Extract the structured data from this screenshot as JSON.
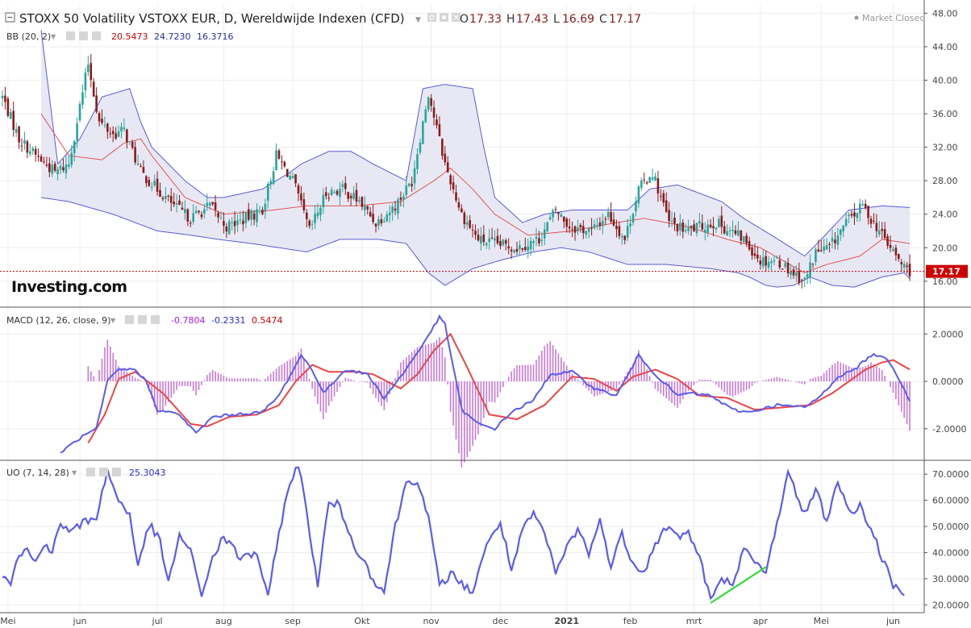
{
  "header": {
    "title": "STOXX 50 Volatility VSTOXX EUR, D, Wereldwijde Indexen (CFD)",
    "ohlc": [
      {
        "label": "O",
        "value": "17.33"
      },
      {
        "label": "H",
        "value": "17.43"
      },
      {
        "label": "L",
        "value": "16.69"
      },
      {
        "label": "C",
        "value": "17.17"
      }
    ],
    "market_status": "Market Closed",
    "logo": "Investing.com"
  },
  "colors": {
    "up": "#26a69a",
    "down": "#8b1a1a",
    "bb_band": "#5b5bd6",
    "bb_fill": "#e8e8f4",
    "bb_mid": "#e05555",
    "macd_line": "#5b5bf0",
    "signal_line": "#ee4444",
    "hist": "#c879d8",
    "uo_line": "#5b5bf0",
    "trendline": "#33dd33",
    "price_line": "#cc0000"
  },
  "chart_data": [
    {
      "type": "candlestick",
      "indicator": "BB (20, 2)",
      "indicator_values": [
        "20.5473",
        "24.7230",
        "16.3716"
      ],
      "ylim": [
        13,
        49
      ],
      "yticks": [
        16,
        20,
        24,
        28,
        32,
        36,
        40,
        44,
        48
      ],
      "ytick_labels": [
        "16.00",
        "20.00",
        "24.00",
        "28.00",
        "32.00",
        "36.00",
        "40.00",
        "44.00",
        "48.00"
      ],
      "last_price": "17.17",
      "close_anchors": [
        [
          0,
          38.0
        ],
        [
          6,
          33.0
        ],
        [
          12,
          31.0
        ],
        [
          19,
          29.0
        ],
        [
          24,
          30.0
        ],
        [
          31,
          42.0
        ],
        [
          35,
          35.0
        ],
        [
          40,
          33.5
        ],
        [
          44,
          34.0
        ],
        [
          50,
          29.0
        ],
        [
          56,
          27.0
        ],
        [
          62,
          25.0
        ],
        [
          68,
          23.5
        ],
        [
          75,
          25.0
        ],
        [
          81,
          22.5
        ],
        [
          88,
          23.5
        ],
        [
          94,
          24.5
        ],
        [
          99,
          31.0
        ],
        [
          105,
          28.0
        ],
        [
          111,
          22.0
        ],
        [
          117,
          26.5
        ],
        [
          123,
          27.0
        ],
        [
          129,
          25.5
        ],
        [
          135,
          23.0
        ],
        [
          142,
          25.0
        ],
        [
          148,
          28.0
        ],
        [
          154,
          38.5
        ],
        [
          160,
          30.0
        ],
        [
          166,
          24.0
        ],
        [
          172,
          21.0
        ],
        [
          178,
          20.5
        ],
        [
          186,
          20.0
        ],
        [
          194,
          21.0
        ],
        [
          200,
          24.5
        ],
        [
          205,
          22.5
        ],
        [
          213,
          22.0
        ],
        [
          219,
          24.0
        ],
        [
          225,
          21.0
        ],
        [
          230,
          27.0
        ],
        [
          235,
          29.0
        ],
        [
          241,
          23.0
        ],
        [
          247,
          22.0
        ],
        [
          252,
          22.5
        ],
        [
          258,
          23.0
        ],
        [
          263,
          22.0
        ],
        [
          268,
          21.0
        ],
        [
          274,
          18.5
        ],
        [
          280,
          18.5
        ],
        [
          286,
          17.0
        ],
        [
          290,
          16.0
        ],
        [
          294,
          19.5
        ],
        [
          299,
          20.0
        ],
        [
          305,
          23.0
        ],
        [
          311,
          25.0
        ],
        [
          315,
          23.0
        ],
        [
          320,
          20.5
        ],
        [
          325,
          18.0
        ],
        [
          328,
          17.2
        ]
      ],
      "bb_upper_anchors": [
        [
          14,
          46.0
        ],
        [
          20,
          30.0
        ],
        [
          28,
          33.0
        ],
        [
          36,
          38.0
        ],
        [
          46,
          39.0
        ],
        [
          50,
          35.0
        ],
        [
          54,
          32.0
        ],
        [
          66,
          28.0
        ],
        [
          74,
          26.0
        ],
        [
          80,
          26.0
        ],
        [
          94,
          27.0
        ],
        [
          104,
          29.0
        ],
        [
          108,
          30.0
        ],
        [
          118,
          31.5
        ],
        [
          126,
          31.5
        ],
        [
          134,
          30.0
        ],
        [
          146,
          28.0
        ],
        [
          152,
          39.0
        ],
        [
          160,
          39.5
        ],
        [
          170,
          39.0
        ],
        [
          174,
          32.0
        ],
        [
          178,
          26.0
        ],
        [
          188,
          23.0
        ],
        [
          196,
          24.0
        ],
        [
          206,
          24.5
        ],
        [
          218,
          24.5
        ],
        [
          226,
          24.5
        ],
        [
          234,
          27.0
        ],
        [
          244,
          27.5
        ],
        [
          252,
          26.5
        ],
        [
          260,
          25.5
        ],
        [
          268,
          23.5
        ],
        [
          278,
          21.5
        ],
        [
          290,
          19.0
        ],
        [
          296,
          21.0
        ],
        [
          306,
          24.5
        ],
        [
          318,
          25.0
        ],
        [
          328,
          24.8
        ]
      ],
      "bb_lower_anchors": [
        [
          14,
          26.0
        ],
        [
          24,
          25.5
        ],
        [
          40,
          24.0
        ],
        [
          56,
          22.0
        ],
        [
          68,
          21.5
        ],
        [
          78,
          21.0
        ],
        [
          90,
          20.5
        ],
        [
          100,
          20.0
        ],
        [
          110,
          19.5
        ],
        [
          122,
          21.0
        ],
        [
          136,
          21.0
        ],
        [
          146,
          20.5
        ],
        [
          154,
          17.0
        ],
        [
          160,
          15.5
        ],
        [
          170,
          17.5
        ],
        [
          180,
          18.5
        ],
        [
          192,
          19.5
        ],
        [
          202,
          20.0
        ],
        [
          212,
          19.5
        ],
        [
          226,
          18.0
        ],
        [
          240,
          18.0
        ],
        [
          256,
          17.5
        ],
        [
          266,
          17.0
        ],
        [
          270,
          16.5
        ],
        [
          276,
          15.5
        ],
        [
          280,
          15.3
        ],
        [
          286,
          15.5
        ],
        [
          292,
          16.5
        ],
        [
          300,
          15.5
        ],
        [
          308,
          15.3
        ],
        [
          318,
          16.5
        ],
        [
          326,
          17.0
        ],
        [
          328,
          16.3
        ]
      ],
      "bb_mid_anchors": [
        [
          14,
          36.0
        ],
        [
          24,
          31.0
        ],
        [
          36,
          30.5
        ],
        [
          44,
          32.5
        ],
        [
          50,
          33.0
        ],
        [
          54,
          31.0
        ],
        [
          66,
          26.0
        ],
        [
          80,
          24.0
        ],
        [
          98,
          24.5
        ],
        [
          110,
          25.0
        ],
        [
          128,
          25.0
        ],
        [
          144,
          25.5
        ],
        [
          156,
          28.0
        ],
        [
          162,
          29.5
        ],
        [
          170,
          27.0
        ],
        [
          178,
          24.0
        ],
        [
          190,
          21.5
        ],
        [
          206,
          22.0
        ],
        [
          222,
          23.0
        ],
        [
          232,
          23.5
        ],
        [
          248,
          22.5
        ],
        [
          262,
          21.0
        ],
        [
          274,
          20.0
        ],
        [
          290,
          17.0
        ],
        [
          298,
          18.0
        ],
        [
          310,
          19.0
        ],
        [
          318,
          21.0
        ],
        [
          328,
          20.5
        ]
      ],
      "x_categories": [
        "Mei",
        "jun",
        "jul",
        "aug",
        "sep",
        "Okt",
        "nov",
        "dec",
        "2021",
        "feb",
        "mrt",
        "apr",
        "Mei",
        "jun"
      ],
      "x_category_bars": [
        2,
        28,
        56,
        80,
        105,
        130,
        155,
        180,
        204,
        227,
        250,
        274,
        296,
        322
      ]
    },
    {
      "type": "macd",
      "indicator": "MACD (12, 26, close, 9)",
      "indicator_values": [
        "-0.7804",
        "-0.2331",
        "0.5474"
      ],
      "ylim": [
        -3.3,
        3.1
      ],
      "yticks": [
        -2,
        0,
        2
      ],
      "ytick_labels": [
        "-2.0000",
        "0.0000",
        "2.0000"
      ],
      "macd_anchors": [
        [
          21,
          -3.0
        ],
        [
          28,
          -2.4
        ],
        [
          34,
          -2.0
        ],
        [
          38,
          0.0
        ],
        [
          42,
          0.5
        ],
        [
          48,
          0.5
        ],
        [
          52,
          0.0
        ],
        [
          56,
          -1.2
        ],
        [
          64,
          -1.4
        ],
        [
          70,
          -2.2
        ],
        [
          76,
          -1.5
        ],
        [
          84,
          -1.4
        ],
        [
          94,
          -1.3
        ],
        [
          100,
          -0.6
        ],
        [
          108,
          1.1
        ],
        [
          112,
          0.5
        ],
        [
          116,
          -0.5
        ],
        [
          124,
          0.5
        ],
        [
          132,
          0.3
        ],
        [
          138,
          -0.7
        ],
        [
          144,
          0.2
        ],
        [
          150,
          1.2
        ],
        [
          158,
          2.7
        ],
        [
          160,
          2.4
        ],
        [
          166,
          -1.2
        ],
        [
          172,
          -1.8
        ],
        [
          178,
          -2.0
        ],
        [
          184,
          -1.3
        ],
        [
          192,
          -0.8
        ],
        [
          198,
          0.3
        ],
        [
          206,
          0.4
        ],
        [
          214,
          -0.3
        ],
        [
          222,
          -0.6
        ],
        [
          230,
          1.1
        ],
        [
          236,
          0.3
        ],
        [
          244,
          -0.6
        ],
        [
          248,
          -0.5
        ],
        [
          256,
          -0.6
        ],
        [
          264,
          -1.2
        ],
        [
          270,
          -1.3
        ],
        [
          280,
          -1.0
        ],
        [
          290,
          -1.1
        ],
        [
          296,
          -0.6
        ],
        [
          302,
          0.2
        ],
        [
          308,
          0.5
        ],
        [
          314,
          1.1
        ],
        [
          318,
          1.1
        ],
        [
          322,
          0.6
        ],
        [
          328,
          -0.8
        ]
      ],
      "signal_anchors": [
        [
          31,
          -2.6
        ],
        [
          37,
          -1.4
        ],
        [
          42,
          0.1
        ],
        [
          48,
          0.4
        ],
        [
          58,
          -0.5
        ],
        [
          68,
          -1.8
        ],
        [
          74,
          -1.9
        ],
        [
          82,
          -1.5
        ],
        [
          92,
          -1.4
        ],
        [
          100,
          -1.0
        ],
        [
          106,
          0.0
        ],
        [
          112,
          0.7
        ],
        [
          118,
          0.4
        ],
        [
          128,
          0.4
        ],
        [
          134,
          0.3
        ],
        [
          144,
          -0.3
        ],
        [
          150,
          0.3
        ],
        [
          156,
          1.3
        ],
        [
          162,
          2.0
        ],
        [
          168,
          0.6
        ],
        [
          176,
          -1.4
        ],
        [
          186,
          -1.6
        ],
        [
          196,
          -1.0
        ],
        [
          206,
          0.2
        ],
        [
          214,
          0.1
        ],
        [
          222,
          -0.4
        ],
        [
          228,
          0.2
        ],
        [
          236,
          0.5
        ],
        [
          244,
          0.1
        ],
        [
          252,
          -0.6
        ],
        [
          262,
          -0.7
        ],
        [
          272,
          -1.2
        ],
        [
          282,
          -1.1
        ],
        [
          292,
          -1.0
        ],
        [
          300,
          -0.5
        ],
        [
          306,
          0.0
        ],
        [
          312,
          0.5
        ],
        [
          318,
          0.8
        ],
        [
          322,
          0.9
        ],
        [
          328,
          0.5
        ]
      ],
      "hist_range": [
        31,
        328
      ]
    },
    {
      "type": "line",
      "indicator": "UO (7, 14, 28)",
      "indicator_values": [
        "25.3043"
      ],
      "ylim": [
        17,
        75
      ],
      "yticks": [
        20,
        30,
        40,
        50,
        60,
        70
      ],
      "ytick_labels": [
        "20.0000",
        "30.0000",
        "40.0000",
        "50.0000",
        "60.0000",
        "70.0000"
      ],
      "uo_anchors": [
        [
          0,
          32.0
        ],
        [
          3,
          29.0
        ],
        [
          6,
          39.0
        ],
        [
          9,
          41.0
        ],
        [
          12,
          36.0
        ],
        [
          15,
          44.0
        ],
        [
          18,
          40.0
        ],
        [
          21,
          51.0
        ],
        [
          25,
          48.0
        ],
        [
          30,
          52.0
        ],
        [
          34,
          54.0
        ],
        [
          38,
          71.0
        ],
        [
          42,
          60.0
        ],
        [
          46,
          55.0
        ],
        [
          49,
          34.0
        ],
        [
          53,
          51.0
        ],
        [
          57,
          44.0
        ],
        [
          60,
          28.0
        ],
        [
          64,
          47.0
        ],
        [
          68,
          40.0
        ],
        [
          72,
          24.0
        ],
        [
          76,
          38.0
        ],
        [
          80,
          46.0
        ],
        [
          86,
          38.0
        ],
        [
          92,
          40.0
        ],
        [
          96,
          22.0
        ],
        [
          100,
          48.0
        ],
        [
          104,
          67.0
        ],
        [
          107,
          74.0
        ],
        [
          110,
          55.0
        ],
        [
          114,
          28.0
        ],
        [
          118,
          59.0
        ],
        [
          122,
          58.0
        ],
        [
          126,
          45.0
        ],
        [
          130,
          38.0
        ],
        [
          134,
          30.0
        ],
        [
          138,
          25.0
        ],
        [
          142,
          50.0
        ],
        [
          146,
          67.0
        ],
        [
          150,
          68.0
        ],
        [
          154,
          53.0
        ],
        [
          158,
          27.0
        ],
        [
          162,
          32.0
        ],
        [
          166,
          28.0
        ],
        [
          170,
          25.0
        ],
        [
          174,
          40.0
        ],
        [
          180,
          52.0
        ],
        [
          184,
          33.0
        ],
        [
          188,
          48.0
        ],
        [
          192,
          55.0
        ],
        [
          196,
          47.0
        ],
        [
          200,
          32.0
        ],
        [
          204,
          42.0
        ],
        [
          208,
          49.0
        ],
        [
          212,
          40.0
        ],
        [
          216,
          52.0
        ],
        [
          220,
          35.0
        ],
        [
          224,
          47.0
        ],
        [
          228,
          36.0
        ],
        [
          232,
          33.0
        ],
        [
          236,
          43.0
        ],
        [
          240,
          50.0
        ],
        [
          244,
          46.0
        ],
        [
          248,
          48.0
        ],
        [
          252,
          38.0
        ],
        [
          256,
          22.0
        ],
        [
          260,
          29.0
        ],
        [
          264,
          29.0
        ],
        [
          268,
          41.0
        ],
        [
          272,
          36.0
        ],
        [
          276,
          32.0
        ],
        [
          280,
          52.0
        ],
        [
          284,
          70.0
        ],
        [
          290,
          55.0
        ],
        [
          294,
          64.0
        ],
        [
          298,
          52.0
        ],
        [
          302,
          68.0
        ],
        [
          306,
          55.0
        ],
        [
          310,
          58.0
        ],
        [
          314,
          49.0
        ],
        [
          318,
          38.0
        ],
        [
          322,
          27.0
        ],
        [
          326,
          25.3
        ]
      ],
      "trendline": [
        [
          256,
          20.7
        ],
        [
          276,
          34.5
        ]
      ]
    }
  ]
}
